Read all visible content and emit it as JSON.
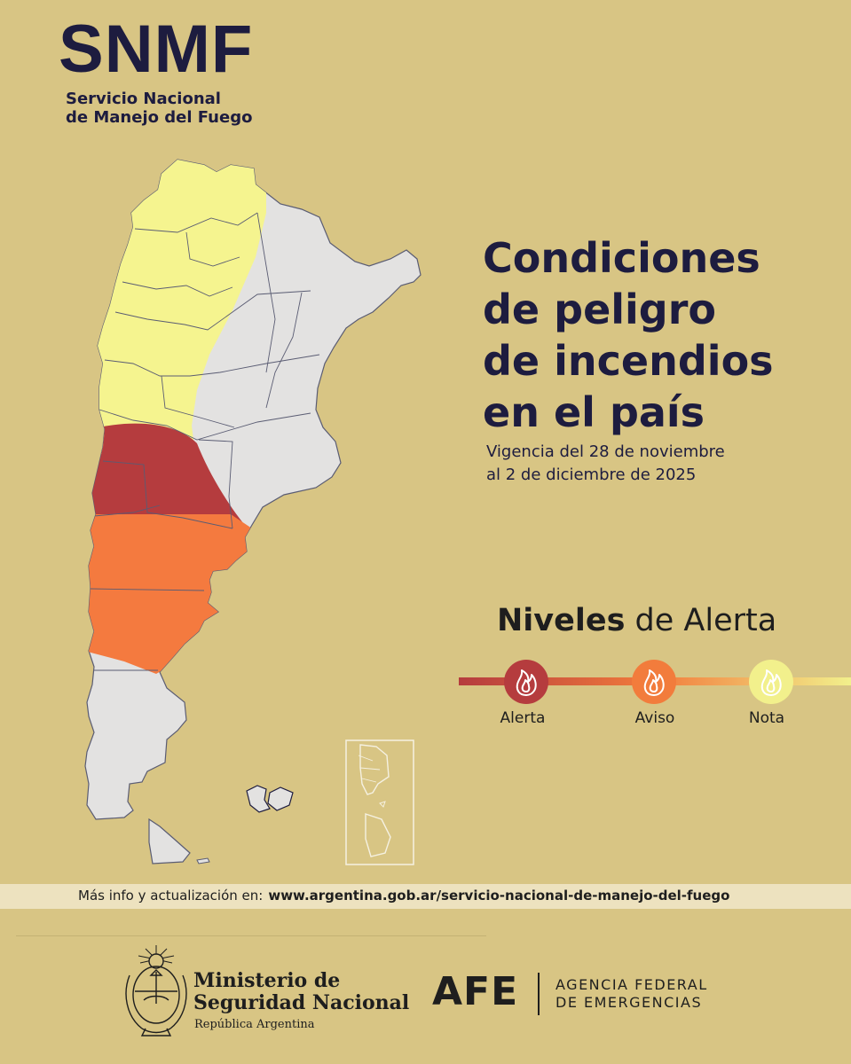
{
  "brand": {
    "acronym": "SNMF",
    "subtitle_line1": "Servicio Nacional",
    "subtitle_line2": "de Manejo del Fuego"
  },
  "headline": {
    "line1": "Condiciones",
    "line2": "de peligro",
    "line3": "de incendios",
    "line4": "en el país"
  },
  "vigencia": {
    "line1": "Vigencia del 28 de noviembre",
    "line2": "al 2 de diciembre de 2025"
  },
  "legend": {
    "title_bold": "Niveles",
    "title_rest": " de Alerta",
    "levels": [
      {
        "label": "Alerta",
        "color": "#b53c3e",
        "icon": "flame-icon"
      },
      {
        "label": "Aviso",
        "color": "#f27c3c",
        "icon": "flame-icon"
      },
      {
        "label": "Nota",
        "color": "#f2f08c",
        "icon": "flame-icon"
      }
    ]
  },
  "map": {
    "base_color": "#e3e2e1",
    "border_color": "#5a5c73",
    "zones": [
      {
        "level": "Nota",
        "color": "#f5f48f"
      },
      {
        "level": "Alerta",
        "color": "#b53c3e"
      },
      {
        "level": "Aviso",
        "color": "#f47a3f"
      }
    ]
  },
  "info": {
    "prefix": "Más info y actualización en:",
    "url": "www.argentina.gob.ar/servicio-nacional-de-manejo-del-fuego"
  },
  "footer": {
    "ministerio_line1": "Ministerio de",
    "ministerio_line2": "Seguridad Nacional",
    "republica": "República Argentina",
    "afe_acronym": "AFE",
    "afe_line1": "AGENCIA FEDERAL",
    "afe_line2": "DE EMERGENCIAS"
  }
}
